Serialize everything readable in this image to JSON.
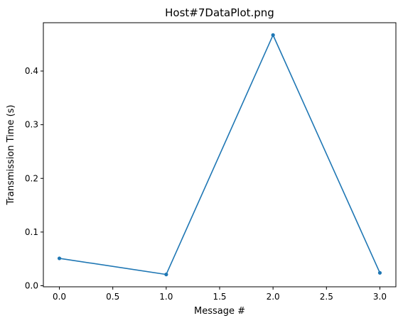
{
  "chart_data": {
    "type": "line",
    "title": "Host#7DataPlot.png",
    "xlabel": "Message #",
    "ylabel": "Transmission Time (s)",
    "xlim": [
      -0.15,
      3.15
    ],
    "ylim": [
      -0.002,
      0.49
    ],
    "xticks": [
      0.0,
      0.5,
      1.0,
      1.5,
      2.0,
      2.5,
      3.0
    ],
    "xtick_labels": [
      "0.0",
      "0.5",
      "1.0",
      "1.5",
      "2.0",
      "2.5",
      "3.0"
    ],
    "yticks": [
      0.0,
      0.1,
      0.2,
      0.3,
      0.4
    ],
    "ytick_labels": [
      "0.0",
      "0.1",
      "0.2",
      "0.3",
      "0.4"
    ],
    "grid": false,
    "series": [
      {
        "x": [
          0,
          1,
          2,
          3
        ],
        "y": [
          0.051,
          0.021,
          0.467,
          0.024
        ],
        "color": "#1f77b4",
        "marker": "circle"
      }
    ]
  }
}
